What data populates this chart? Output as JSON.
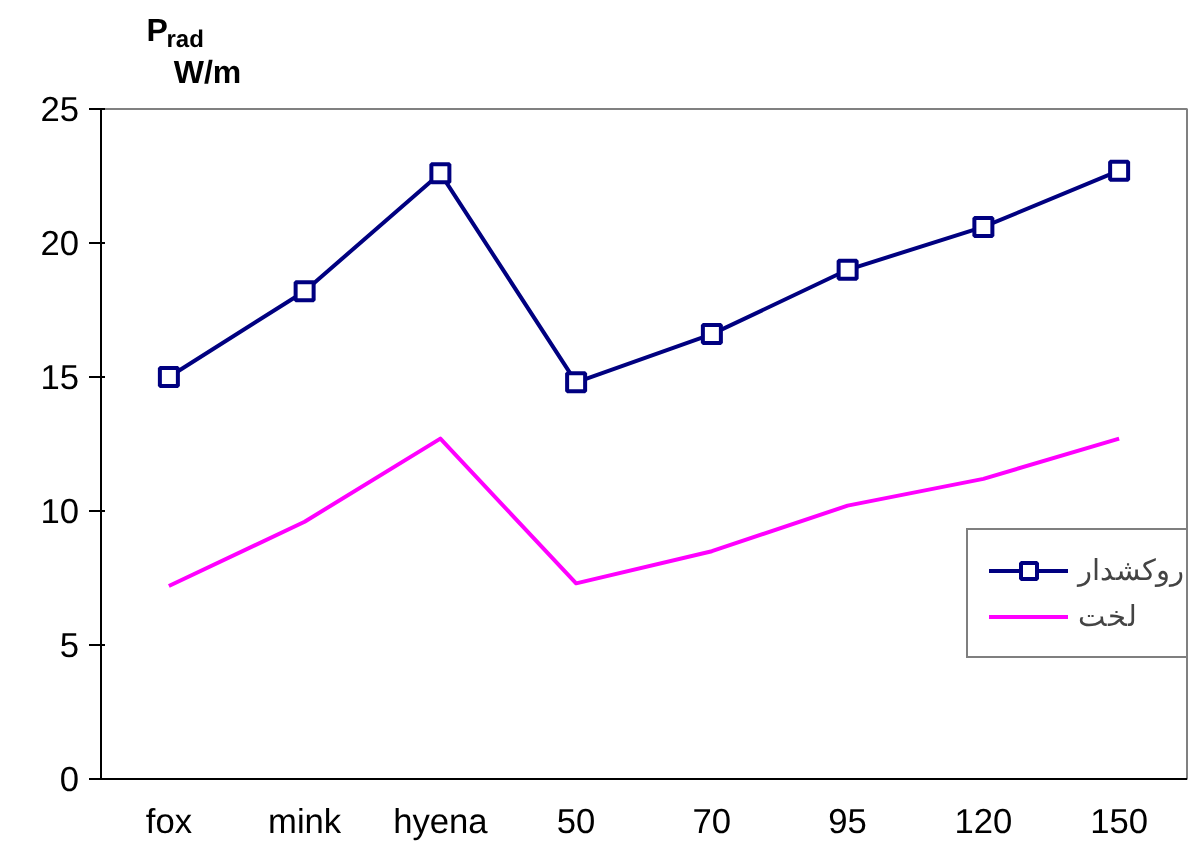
{
  "chart_data": {
    "type": "line",
    "ylabel": "P$_{rad}$ W/m",
    "categories": [
      "fox",
      "mink",
      "hyena",
      "50",
      "70",
      "95",
      "120",
      "150"
    ],
    "series": [
      {
        "name": "روکشدار",
        "color": "#000080",
        "marker": "square",
        "values": [
          15.0,
          18.2,
          22.6,
          14.8,
          16.6,
          19.0,
          20.6,
          22.7
        ]
      },
      {
        "name": "لخت",
        "color": "#ff00ff",
        "marker": "none",
        "values": [
          7.2,
          9.6,
          12.7,
          7.3,
          8.5,
          10.2,
          11.2,
          12.7
        ]
      }
    ],
    "ylim": [
      0,
      25
    ],
    "yticks": [
      0,
      5,
      10,
      15,
      20,
      25
    ],
    "grid": false,
    "legend": "right"
  }
}
